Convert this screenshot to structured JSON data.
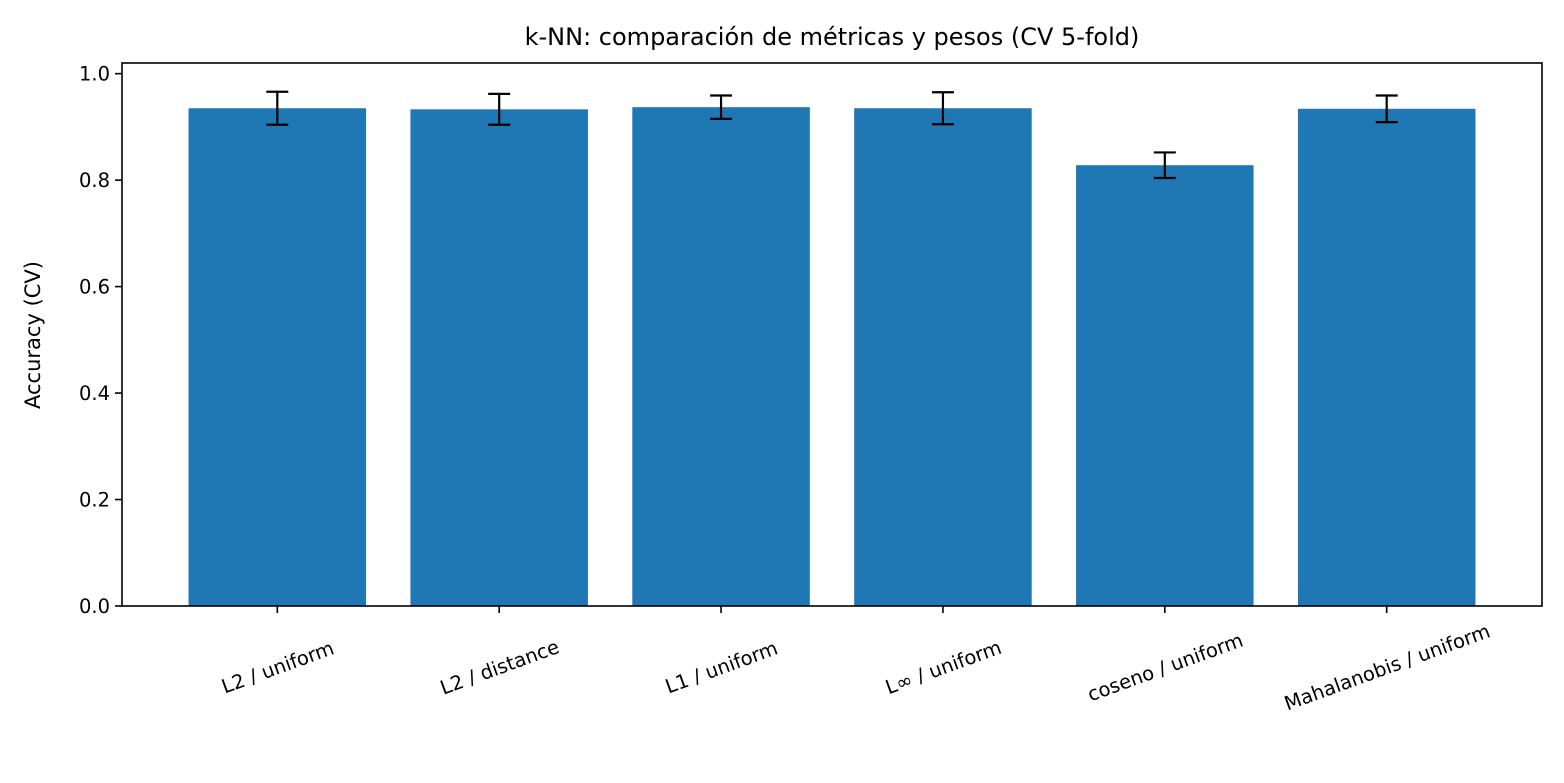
{
  "chart_data": {
    "type": "bar",
    "title": "k-NN: comparación de métricas y pesos (CV 5-fold)",
    "xlabel": "",
    "ylabel": "Accuracy (CV)",
    "categories": [
      "L2 / uniform",
      "L2 / distance",
      "L1 / uniform",
      "L∞ / uniform",
      "coseno / uniform",
      "Mahalanobis / uniform"
    ],
    "values": [
      0.935,
      0.933,
      0.937,
      0.935,
      0.828,
      0.934
    ],
    "errors": [
      0.031,
      0.029,
      0.022,
      0.03,
      0.024,
      0.025
    ],
    "ylim": [
      0,
      1.02
    ],
    "yticks": [
      0.0,
      0.2,
      0.4,
      0.6,
      0.8,
      1.0
    ],
    "ytick_labels": [
      "0.0",
      "0.2",
      "0.4",
      "0.6",
      "0.8",
      "1.0"
    ],
    "grid": false,
    "legend": "none",
    "bar_color": "#1f77b4",
    "error_color": "#000000"
  }
}
